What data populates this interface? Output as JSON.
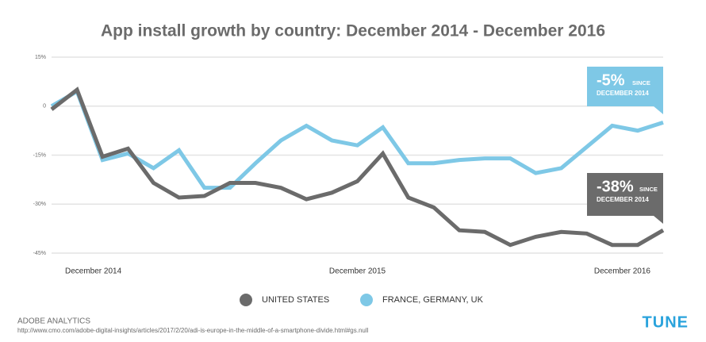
{
  "chart_data": {
    "type": "line",
    "title": "App install growth by country: December 2014 - December 2016",
    "categories": [
      "December 2014",
      null,
      null,
      null,
      null,
      null,
      null,
      null,
      null,
      null,
      null,
      null,
      "December 2015",
      null,
      null,
      null,
      null,
      null,
      null,
      null,
      null,
      null,
      null,
      null,
      "December 2016"
    ],
    "series": [
      {
        "name": "UNITED STATES",
        "color": "#6b6b6b",
        "values": [
          -1,
          5,
          -15.5,
          -13,
          -23.5,
          -28,
          -27.5,
          -23.5,
          -23.5,
          -25,
          -28.5,
          -26.5,
          -23,
          -14.5,
          -28,
          -31,
          -38,
          -38.5,
          -42.5,
          -40,
          -38.5,
          -39,
          -42.5,
          -42.5,
          -38
        ]
      },
      {
        "name": "FRANCE, GERMANY, UK",
        "color": "#7ec8e6",
        "values": [
          0,
          4.5,
          -16.5,
          -14.5,
          -19,
          -13.5,
          -25,
          -25,
          -17.5,
          -10.5,
          -6,
          -10.5,
          -12,
          -6.5,
          -17.5,
          -17.5,
          -16.5,
          -16,
          -16,
          -20.5,
          -19,
          -12.5,
          -6,
          -7.5,
          -5
        ]
      }
    ],
    "ylim": [
      -45,
      15
    ],
    "yticks": [
      {
        "value": 15,
        "label": "15%"
      },
      0,
      {
        "value": -15,
        "label": "-15%"
      },
      {
        "value": -30,
        "label": "-30%"
      },
      {
        "value": -45,
        "label": "-45%"
      }
    ],
    "grid": true,
    "annotations": [
      {
        "label": "-5%",
        "line1": "SINCE",
        "line2": "DECEMBER 2014"
      },
      {
        "label": "-38%",
        "line1": "SINCE",
        "line2": "DECEMBER 2014"
      }
    ],
    "source": "ADOBE ANALYTICS",
    "url": "http://www.cmo.com/adobe-digital-insights/articles/2017/2/20/adi-is-europe-in-the-middle-of-a-smartphone-divide.html#gs.null",
    "logo": "TUNE"
  }
}
